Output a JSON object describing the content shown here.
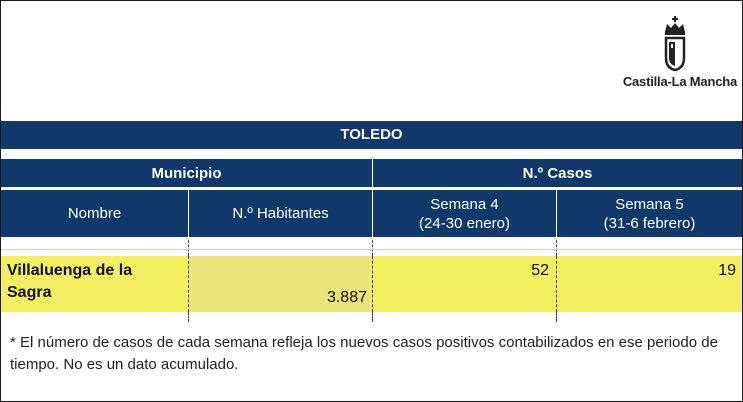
{
  "logo": {
    "text": "Castilla-La Mancha",
    "icon": "crest-icon"
  },
  "table": {
    "province": "TOLEDO",
    "group_municipio": "Municipio",
    "group_casos": "N.º Casos",
    "col_nombre": "Nombre",
    "col_habitantes": "N.º Habitantes",
    "col_semana4_line1": "Semana 4",
    "col_semana4_line2": "(24-30 enero)",
    "col_semana5_line1": "Semana 5",
    "col_semana5_line2": "(31-6 febrero)",
    "rows": [
      {
        "municipio_line1": "Villaluenga de la",
        "municipio_line2": "Sagra",
        "habitantes": "3.887",
        "semana4": "52",
        "semana5": "19"
      }
    ]
  },
  "footnote": "* El número de casos de cada semana refleja los nuevos casos positivos contabilizados en ese periodo de tiempo. No es un dato acumulado.",
  "colors": {
    "header_bg": "#11386b",
    "row_highlight": "#f2ef61"
  }
}
